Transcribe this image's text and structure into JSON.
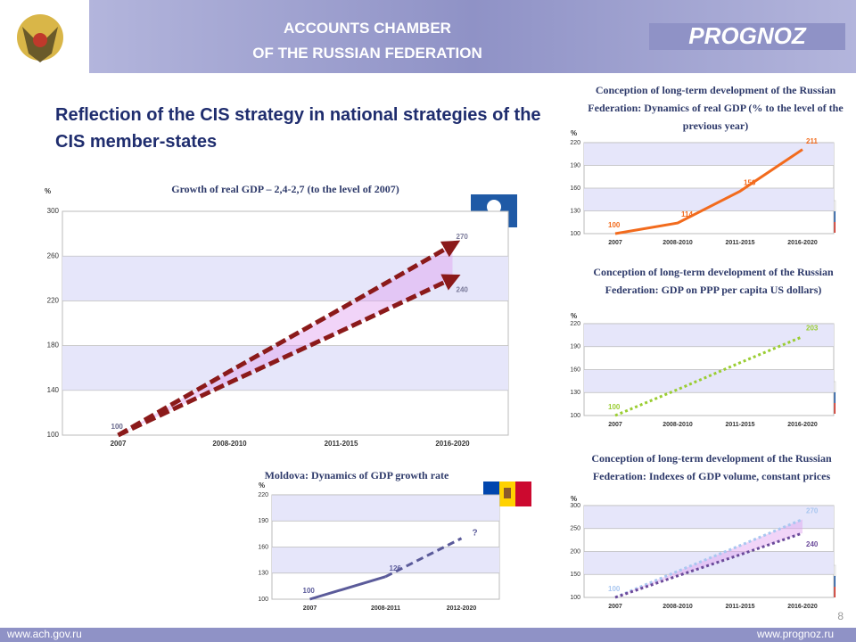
{
  "header": {
    "org_lines": [
      "ACCOUNTS CHAMBER",
      "OF THE RUSSIAN FEDERATION"
    ],
    "logo": "PROGNOZ"
  },
  "title": "Reflection of the CIS strategy in national strategies of the CIS member-states",
  "footer": {
    "left": "www.ach.gov.ru",
    "right": "www.prognoz.ru",
    "page": "8"
  },
  "chart_data": [
    {
      "type": "line",
      "title": "Growth of real GDP – 2,4-2,7 (to the level of 2007)",
      "y_label": "%",
      "categories": [
        "2007",
        "2008-2010",
        "2011-2015",
        "2016-2020"
      ],
      "ylim": [
        100,
        300
      ],
      "yticks": [
        100,
        140,
        180,
        220,
        260,
        300
      ],
      "grid": true,
      "series": [
        {
          "color": "#8b1a1a",
          "style": "dashed",
          "arrow": true,
          "values": [
            100,
            157,
            213,
            270
          ],
          "value_labels": [
            "100",
            null,
            null,
            "270"
          ]
        },
        {
          "color": "#8b1a1a",
          "style": "dashed",
          "arrow": true,
          "values": [
            100,
            147,
            193,
            240
          ],
          "value_labels": [
            "100",
            null,
            null,
            "240"
          ]
        }
      ]
    },
    {
      "type": "line",
      "title": "Moldova: Dynamics of GDP growth rate",
      "y_label": "%",
      "categories": [
        "2007",
        "2008-2011",
        "2012-2020"
      ],
      "ylim": [
        100,
        220
      ],
      "yticks": [
        100,
        130,
        160,
        190,
        220
      ],
      "grid": true,
      "annotation": "?",
      "series": [
        {
          "color": "#5b5b9a",
          "style": "solid-dashed",
          "values": [
            100,
            126,
            170
          ],
          "value_labels": [
            "100",
            "126",
            null
          ]
        }
      ]
    },
    {
      "type": "line",
      "title": "Conception of long-term development of the Russian Federation: Dynamics of real GDP (% to the level of the previous year)",
      "y_label": "%",
      "categories": [
        "2007",
        "2008-2010",
        "2011-2015",
        "2016-2020"
      ],
      "ylim": [
        100,
        220
      ],
      "yticks": [
        100,
        130,
        160,
        190,
        220
      ],
      "grid": true,
      "series": [
        {
          "color": "#f26b1d",
          "style": "solid",
          "values": [
            100,
            114,
            156,
            211
          ],
          "value_labels": [
            "100",
            "114",
            "156",
            "211"
          ]
        }
      ]
    },
    {
      "type": "line",
      "title": "Conception of long-term development of the Russian Federation: GDP on PPP per capita US dollars)",
      "y_label": "%",
      "categories": [
        "2007",
        "2008-2010",
        "2011-2015",
        "2016-2020"
      ],
      "ylim": [
        100,
        220
      ],
      "yticks": [
        100,
        130,
        160,
        190,
        220
      ],
      "grid": true,
      "series": [
        {
          "color": "#9acd32",
          "style": "dotted",
          "values": [
            100,
            134,
            169,
            203
          ],
          "value_labels": [
            "100",
            null,
            null,
            "203"
          ]
        }
      ]
    },
    {
      "type": "line",
      "title": "Conception of long-term development of the Russian Federation: Indexes of GDP volume, constant prices",
      "y_label": "%",
      "categories": [
        "2007",
        "2008-2010",
        "2011-2015",
        "2016-2020"
      ],
      "ylim": [
        100,
        300
      ],
      "yticks": [
        100,
        150,
        200,
        250,
        300
      ],
      "grid": true,
      "series": [
        {
          "color": "#a9c7f0",
          "style": "dotted",
          "values": [
            100,
            157,
            213,
            270
          ],
          "value_labels": [
            "100",
            null,
            null,
            "270"
          ]
        },
        {
          "color": "#6b4a9a",
          "style": "dotted",
          "values": [
            100,
            147,
            193,
            240
          ],
          "value_labels": [
            null,
            null,
            null,
            "240"
          ]
        }
      ]
    }
  ]
}
